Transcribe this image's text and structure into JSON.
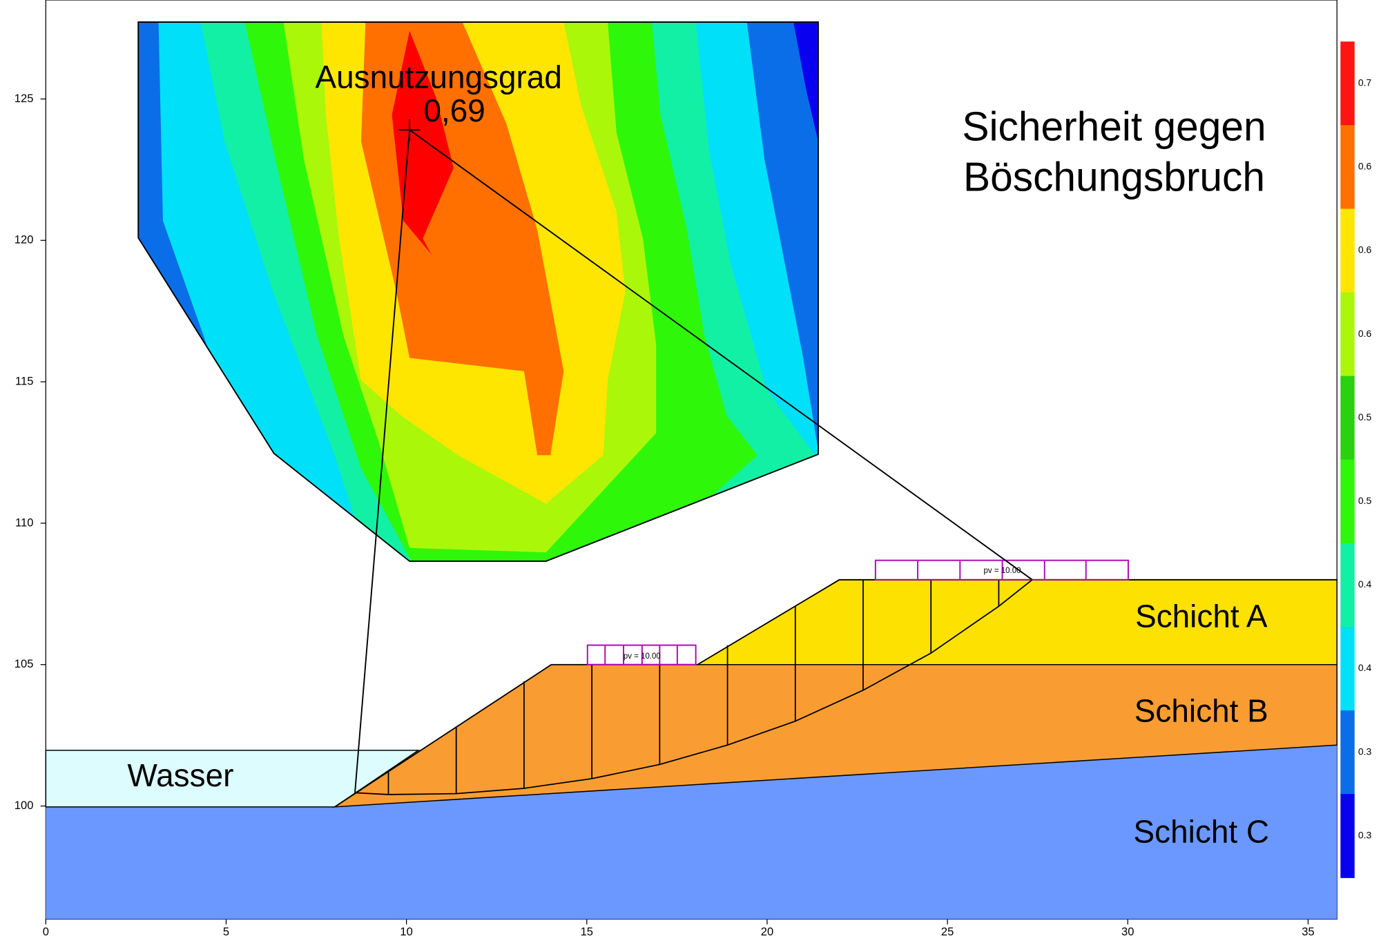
{
  "plot": {
    "type": "slope-stability",
    "title": [
      "Sicherheit gegen",
      "Böschungsbruch"
    ],
    "xlim": [
      0,
      35.8
    ],
    "ylim": [
      96,
      128.5
    ],
    "xticks": [
      0,
      5,
      10,
      15,
      20,
      25,
      30,
      35
    ],
    "yticks": [
      100,
      105,
      110,
      115,
      120,
      125
    ],
    "layers": [
      "Schicht A",
      "Schicht B",
      "Schicht C"
    ],
    "water": "Wasser",
    "loads": [
      "pv = 10.00",
      "pv = 10.00"
    ],
    "annotation": {
      "label": "Ausnutzungsgrad",
      "value": "0,69"
    },
    "colorbar": {
      "labels": [
        "0.7",
        "0.6",
        "0.6",
        "0.6",
        "0.5",
        "0.5",
        "0.4",
        "0.4",
        "0.3",
        "0.3"
      ],
      "colors": [
        "#ff1414",
        "#ff7000",
        "#ffe600",
        "#aaf70a",
        "#2ad10f",
        "#2ef70a",
        "#12f0a6",
        "#00e0f8",
        "#0a6ee8",
        "#0a00f0"
      ]
    }
  }
}
